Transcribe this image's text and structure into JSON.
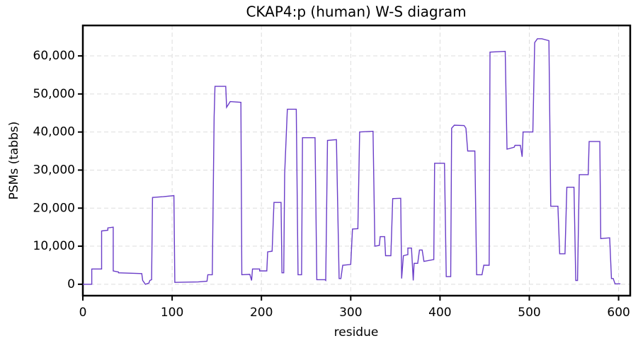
{
  "chart_data": {
    "type": "line",
    "title": "CKAP4:p (human) W-S diagram",
    "xlabel": "residue",
    "ylabel": "PSMs (tabbs)",
    "x": [
      0,
      10,
      10,
      21,
      21,
      28,
      28,
      34,
      34,
      40,
      40,
      66,
      67,
      70,
      74,
      75,
      77,
      78,
      90,
      102,
      103,
      129,
      139,
      140,
      145,
      147,
      148,
      160,
      161,
      165,
      177,
      178,
      187,
      189,
      190,
      198,
      198,
      206,
      207,
      212,
      214,
      222,
      223,
      225,
      226,
      229,
      239,
      241,
      245,
      246,
      260,
      262,
      271,
      272,
      274,
      284,
      287,
      289,
      291,
      300,
      302,
      308,
      310,
      325,
      327,
      332,
      333,
      338,
      339,
      345,
      347,
      356,
      357,
      359,
      364,
      364,
      368,
      370,
      371,
      375,
      377,
      380,
      382,
      393,
      394,
      405,
      407,
      412,
      413,
      416,
      427,
      429,
      431,
      439,
      441,
      447,
      449,
      455,
      456,
      473,
      475,
      483,
      484,
      490,
      492,
      493,
      504,
      506,
      509,
      514,
      522,
      524,
      532,
      534,
      540,
      542,
      550,
      552,
      554,
      556,
      566,
      567,
      579,
      580,
      590,
      592,
      594,
      596,
      602
    ],
    "series": [
      {
        "color": "#6a3dc8",
        "values": [
          0,
          0,
          4000,
          4000,
          14000,
          14200,
          14800,
          15000,
          3500,
          3200,
          3000,
          2800,
          1000,
          0,
          300,
          1000,
          1200,
          22800,
          23000,
          23300,
          500,
          600,
          800,
          2500,
          2500,
          44000,
          52000,
          52000,
          46500,
          48000,
          47800,
          2500,
          2600,
          1000,
          4000,
          4000,
          3500,
          3500,
          8500,
          8700,
          21500,
          21500,
          3000,
          3000,
          29000,
          46000,
          46000,
          2500,
          2500,
          38500,
          38500,
          1200,
          1200,
          1000,
          37800,
          38000,
          1500,
          1500,
          5000,
          5200,
          14500,
          14600,
          40000,
          40200,
          10000,
          10200,
          12500,
          12500,
          7500,
          7500,
          22500,
          22600,
          1500,
          7500,
          7800,
          9500,
          9500,
          1000,
          5500,
          5500,
          9000,
          9000,
          6000,
          6500,
          31800,
          31800,
          2000,
          2000,
          41000,
          41800,
          41700,
          41000,
          35000,
          35000,
          2500,
          2500,
          5000,
          5000,
          61000,
          61200,
          35500,
          36000,
          36500,
          36500,
          33500,
          40000,
          40000,
          63500,
          64500,
          64500,
          64000,
          20500,
          20500,
          8000,
          8000,
          25500,
          25500,
          1000,
          1000,
          28800,
          28800,
          37500,
          37500,
          12000,
          12200,
          1500,
          1500,
          100,
          100
        ]
      }
    ],
    "xlim": [
      0,
      613
    ],
    "ylim": [
      -3000,
      68000
    ],
    "xticks": [
      0,
      100,
      200,
      300,
      400,
      500,
      600
    ],
    "yticks": [
      0,
      {
        "value": 10000,
        "label": "10,000"
      },
      {
        "value": 20000,
        "label": "20,000"
      },
      {
        "value": 30000,
        "label": "30,000"
      },
      {
        "value": 40000,
        "label": "40,000"
      },
      {
        "value": 50000,
        "label": "50,000"
      },
      {
        "value": 60000,
        "label": "60,000"
      }
    ],
    "grid": true
  }
}
